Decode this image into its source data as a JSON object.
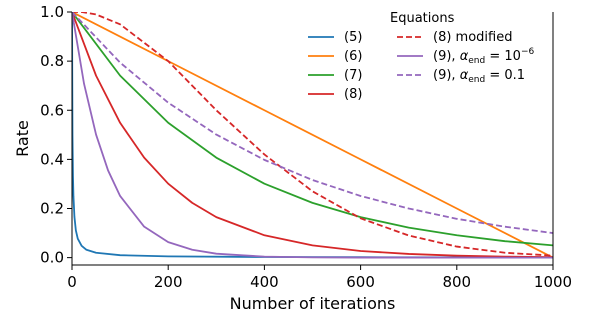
{
  "chart_data": {
    "type": "line",
    "xlabel": "Number of iterations",
    "ylabel": "Rate",
    "xlim": [
      0,
      1000
    ],
    "ylim": [
      -0.03,
      1.0
    ],
    "x_ticks": [
      0,
      200,
      400,
      600,
      800,
      1000
    ],
    "y_ticks": [
      0.0,
      0.2,
      0.4,
      0.6,
      0.8,
      1.0
    ],
    "x_tick_labels": [
      "0",
      "200",
      "400",
      "600",
      "800",
      "1000"
    ],
    "y_tick_labels": [
      "0.0",
      "0.2",
      "0.4",
      "0.6",
      "0.8",
      "1.0"
    ],
    "grid": false,
    "legend": {
      "title": "Equations",
      "placement": "top-right",
      "columns": 2
    },
    "series": [
      {
        "name": "(5)",
        "color": "#1f77b4",
        "dash": "solid",
        "x": [
          0,
          1,
          2,
          3,
          5,
          8,
          12,
          20,
          30,
          50,
          100,
          200,
          400,
          600,
          800,
          1000
        ],
        "y": [
          1.0,
          0.5,
          0.333,
          0.25,
          0.167,
          0.111,
          0.077,
          0.048,
          0.032,
          0.02,
          0.01,
          0.005,
          0.0025,
          0.0017,
          0.0012,
          0.001
        ]
      },
      {
        "name": "(6)",
        "color": "#ff7f0e",
        "dash": "solid",
        "x": [
          0,
          200,
          400,
          600,
          800,
          1000
        ],
        "y": [
          1.0,
          0.8,
          0.6,
          0.4,
          0.2,
          0.0
        ]
      },
      {
        "name": "(7)",
        "color": "#2ca02c",
        "dash": "solid",
        "x": [
          0,
          100,
          200,
          300,
          400,
          500,
          600,
          700,
          800,
          900,
          1000
        ],
        "y": [
          1.0,
          0.741,
          0.549,
          0.407,
          0.301,
          0.223,
          0.165,
          0.122,
          0.091,
          0.067,
          0.05
        ]
      },
      {
        "name": "(8)",
        "color": "#d62728",
        "dash": "solid",
        "x": [
          0,
          50,
          100,
          150,
          200,
          250,
          300,
          400,
          500,
          600,
          700,
          800,
          900,
          1000
        ],
        "y": [
          1.0,
          0.741,
          0.549,
          0.407,
          0.301,
          0.223,
          0.165,
          0.091,
          0.05,
          0.027,
          0.015,
          0.008,
          0.004,
          0.002
        ]
      },
      {
        "name": "(8) modified",
        "color": "#d62728",
        "dash": "dashed",
        "x": [
          0,
          20,
          50,
          100,
          200,
          300,
          400,
          500,
          600,
          700,
          800,
          900,
          1000
        ],
        "y": [
          1.0,
          1.0,
          0.99,
          0.95,
          0.8,
          0.6,
          0.42,
          0.27,
          0.16,
          0.09,
          0.045,
          0.02,
          0.008
        ]
      },
      {
        "name": "(9), α_end = 10⁻⁶",
        "color": "#9467bd",
        "dash": "solid",
        "x": [
          0,
          25,
          50,
          75,
          100,
          150,
          200,
          250,
          300,
          400,
          500,
          600,
          800,
          1000
        ],
        "y": [
          1.0,
          0.708,
          0.501,
          0.355,
          0.251,
          0.126,
          0.063,
          0.032,
          0.016,
          0.004,
          0.001,
          0.0003,
          0.0,
          0.0
        ]
      },
      {
        "name": "(9), α_end = 0.1",
        "color": "#9467bd",
        "dash": "dashed",
        "x": [
          0,
          100,
          200,
          300,
          400,
          500,
          600,
          700,
          800,
          900,
          1000
        ],
        "y": [
          1.0,
          0.794,
          0.631,
          0.501,
          0.398,
          0.316,
          0.251,
          0.2,
          0.158,
          0.126,
          0.1
        ]
      }
    ],
    "legend_labels": [
      {
        "base": "(5)"
      },
      {
        "base": "(6)"
      },
      {
        "base": "(7)"
      },
      {
        "base": "(8)"
      },
      {
        "base": "(8) modified"
      },
      {
        "base": "(9), ",
        "sym": "α",
        "sub": "end",
        "eq": " = 10",
        "sup": "−6"
      },
      {
        "base": "(9), ",
        "sym": "α",
        "sub": "end",
        "eq": " = 0.1"
      }
    ]
  }
}
